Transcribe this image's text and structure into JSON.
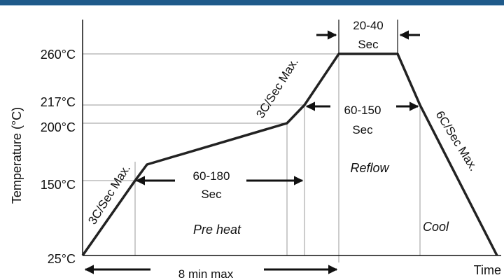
{
  "chart_data": {
    "type": "line",
    "title": "",
    "xlabel": "Time",
    "ylabel": "Temperature (°C)",
    "y_ticks": [
      {
        "value": 25,
        "label": "25°C"
      },
      {
        "value": 150,
        "label": "150°C"
      },
      {
        "value": 200,
        "label": "200°C"
      },
      {
        "value": 217,
        "label": "217°C"
      },
      {
        "value": 260,
        "label": "260°C"
      }
    ],
    "series": [
      {
        "points": [
          [
            0,
            25
          ],
          [
            1,
            150
          ],
          [
            1.3,
            164
          ],
          [
            3,
            200
          ],
          [
            3.3,
            217
          ],
          [
            3.7,
            260
          ],
          [
            4.6,
            260
          ],
          [
            5.1,
            217
          ],
          [
            6.2,
            25
          ]
        ]
      }
    ],
    "annotations": {
      "ramp1": "3C/Sec Max.",
      "ramp2": "3C/Sec Max.",
      "ramp3": "6C/Sec Max.",
      "preheat_time_line1": "60-180",
      "preheat_time_line2": "Sec",
      "reflow_time_line1": "60-150",
      "reflow_time_line2": "Sec",
      "peak_time_line1": "20-40",
      "peak_time_line2": "Sec",
      "total_time": "8 min max",
      "preheat_zone": "Pre heat",
      "reflow_zone": "Reflow",
      "cool_zone": "Cool"
    }
  }
}
